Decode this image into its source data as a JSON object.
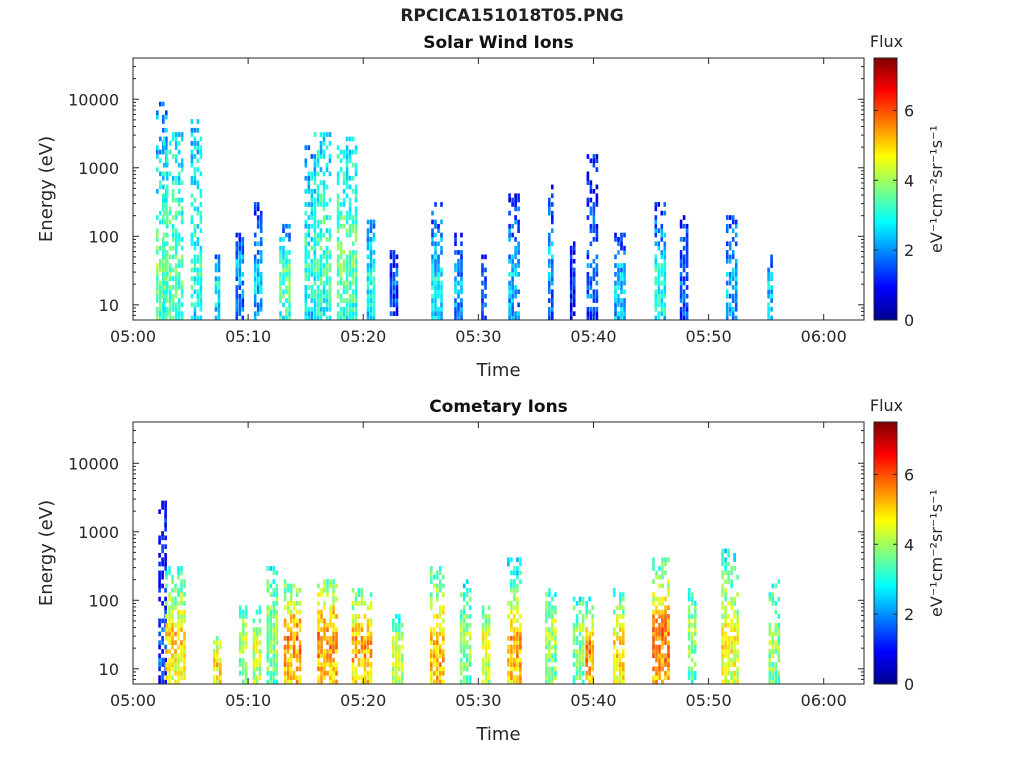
{
  "figure_title": "RPCICA151018T05.PNG",
  "chart_data": [
    {
      "type": "heatmap",
      "title": "Solar Wind Ions",
      "xlabel": "Time",
      "ylabel": "Energy (eV)",
      "x_ticks": [
        "05:00",
        "05:10",
        "05:20",
        "05:30",
        "05:40",
        "05:50",
        "06:00"
      ],
      "x_tick_minutes": [
        0,
        10,
        20,
        30,
        40,
        50,
        60
      ],
      "xlim_minutes": [
        0,
        63.5
      ],
      "y_scale": "log",
      "y_ticks": [
        "10",
        "100",
        "1000",
        "10000"
      ],
      "y_tick_values": [
        10,
        100,
        1000,
        10000
      ],
      "ylim": [
        6,
        40000
      ],
      "colorbar": {
        "title": "Flux",
        "label": "eV⁻¹cm⁻²sr⁻¹s⁻¹",
        "ticks": [
          "0",
          "2",
          "4",
          "6"
        ],
        "tick_values": [
          0,
          2,
          4,
          6
        ],
        "range": [
          0,
          7.5
        ]
      },
      "bursts": [
        {
          "t": 2.4,
          "w": 0.8,
          "peak_e": 30,
          "peak": 3.8,
          "hi_e": 8000,
          "hi": 1.8
        },
        {
          "t": 3.4,
          "w": 1.6,
          "peak_e": 25,
          "peak": 3.6,
          "hi_e": 3000,
          "hi": 2.6
        },
        {
          "t": 5.5,
          "w": 1.0,
          "peak_e": 30,
          "peak": 3.2,
          "hi_e": 5000,
          "hi": 2.4
        },
        {
          "t": 7.3,
          "w": 0.4,
          "peak_e": 20,
          "peak": 2.8,
          "hi_e": 50,
          "hi": 1.2
        },
        {
          "t": 9.2,
          "w": 0.6,
          "peak_e": 40,
          "peak": 2.2,
          "hi_e": 100,
          "hi": 1.2
        },
        {
          "t": 10.8,
          "w": 0.6,
          "peak_e": 25,
          "peak": 2.6,
          "hi_e": 300,
          "hi": 1.0
        },
        {
          "t": 13.2,
          "w": 1.0,
          "peak_e": 30,
          "peak": 3.6,
          "hi_e": 150,
          "hi": 1.5
        },
        {
          "t": 15.3,
          "w": 0.8,
          "peak_e": 30,
          "peak": 3.2,
          "hi_e": 2000,
          "hi": 2.0
        },
        {
          "t": 16.4,
          "w": 1.4,
          "peak_e": 35,
          "peak": 3.4,
          "hi_e": 3000,
          "hi": 2.6
        },
        {
          "t": 18.6,
          "w": 1.8,
          "peak_e": 30,
          "peak": 3.6,
          "hi_e": 2500,
          "hi": 2.8
        },
        {
          "t": 20.6,
          "w": 0.6,
          "peak_e": 20,
          "peak": 3.0,
          "hi_e": 200,
          "hi": 1.8
        },
        {
          "t": 22.6,
          "w": 0.6,
          "peak_e": 20,
          "peak": 1.6,
          "hi_e": 60,
          "hi": 1.0
        },
        {
          "t": 26.3,
          "w": 0.8,
          "peak_e": 20,
          "peak": 2.8,
          "hi_e": 300,
          "hi": 1.2
        },
        {
          "t": 28.2,
          "w": 0.6,
          "peak_e": 20,
          "peak": 2.2,
          "hi_e": 100,
          "hi": 1.0
        },
        {
          "t": 30.5,
          "w": 0.5,
          "peak_e": 20,
          "peak": 1.6,
          "hi_e": 50,
          "hi": 1.0
        },
        {
          "t": 33.0,
          "w": 0.8,
          "peak_e": 25,
          "peak": 2.4,
          "hi_e": 400,
          "hi": 1.0
        },
        {
          "t": 36.3,
          "w": 0.5,
          "peak_e": 50,
          "peak": 2.2,
          "hi_e": 500,
          "hi": 1.0
        },
        {
          "t": 38.2,
          "w": 0.5,
          "peak_e": 40,
          "peak": 1.4,
          "hi_e": 80,
          "hi": 0.8
        },
        {
          "t": 39.8,
          "w": 0.8,
          "peak_e": 20,
          "peak": 1.8,
          "hi_e": 1500,
          "hi": 1.0
        },
        {
          "t": 42.2,
          "w": 0.8,
          "peak_e": 20,
          "peak": 2.6,
          "hi_e": 100,
          "hi": 1.0
        },
        {
          "t": 45.7,
          "w": 0.8,
          "peak_e": 25,
          "peak": 3.2,
          "hi_e": 300,
          "hi": 1.0
        },
        {
          "t": 47.8,
          "w": 0.6,
          "peak_e": 25,
          "peak": 1.8,
          "hi_e": 200,
          "hi": 1.0
        },
        {
          "t": 52.0,
          "w": 1.0,
          "peak_e": 25,
          "peak": 2.4,
          "hi_e": 200,
          "hi": 1.4
        },
        {
          "t": 55.3,
          "w": 0.4,
          "peak_e": 20,
          "peak": 2.6,
          "hi_e": 60,
          "hi": 1.0
        }
      ]
    },
    {
      "type": "heatmap",
      "title": "Cometary Ions",
      "xlabel": "Time",
      "ylabel": "Energy (eV)",
      "x_ticks": [
        "05:00",
        "05:10",
        "05:20",
        "05:30",
        "05:40",
        "05:50",
        "06:00"
      ],
      "x_tick_minutes": [
        0,
        10,
        20,
        30,
        40,
        50,
        60
      ],
      "xlim_minutes": [
        0,
        63.5
      ],
      "y_scale": "log",
      "y_ticks": [
        "10",
        "100",
        "1000",
        "10000"
      ],
      "y_tick_values": [
        10,
        100,
        1000,
        10000
      ],
      "ylim": [
        6,
        40000
      ],
      "colorbar": {
        "title": "Flux",
        "label": "eV⁻¹cm⁻²sr⁻¹s⁻¹",
        "ticks": [
          "0",
          "2",
          "4",
          "6"
        ],
        "tick_values": [
          0,
          2,
          4,
          6
        ],
        "range": [
          0,
          7.5
        ]
      },
      "bursts": [
        {
          "t": 2.5,
          "w": 0.6,
          "peak_e": 12,
          "peak": 1.5,
          "hi_e": 2500,
          "hi": 1.0
        },
        {
          "t": 3.6,
          "w": 1.6,
          "peak_e": 30,
          "peak": 5.0,
          "hi_e": 300,
          "hi": 2.8
        },
        {
          "t": 7.3,
          "w": 0.7,
          "peak_e": 12,
          "peak": 5.0,
          "hi_e": 30,
          "hi": 3.8
        },
        {
          "t": 9.5,
          "w": 0.6,
          "peak_e": 40,
          "peak": 4.2,
          "hi_e": 80,
          "hi": 3.0
        },
        {
          "t": 10.7,
          "w": 0.6,
          "peak_e": 20,
          "peak": 4.4,
          "hi_e": 80,
          "hi": 3.0
        },
        {
          "t": 12.0,
          "w": 0.8,
          "peak_e": 40,
          "peak": 4.0,
          "hi_e": 300,
          "hi": 3.0
        },
        {
          "t": 13.8,
          "w": 1.4,
          "peak_e": 30,
          "peak": 5.6,
          "hi_e": 200,
          "hi": 3.2
        },
        {
          "t": 16.8,
          "w": 1.6,
          "peak_e": 30,
          "peak": 5.6,
          "hi_e": 200,
          "hi": 3.6
        },
        {
          "t": 19.8,
          "w": 1.6,
          "peak_e": 25,
          "peak": 5.4,
          "hi_e": 150,
          "hi": 3.2
        },
        {
          "t": 23.0,
          "w": 1.0,
          "peak_e": 20,
          "peak": 4.4,
          "hi_e": 60,
          "hi": 3.0
        },
        {
          "t": 26.4,
          "w": 1.2,
          "peak_e": 20,
          "peak": 5.4,
          "hi_e": 300,
          "hi": 3.2
        },
        {
          "t": 28.8,
          "w": 0.8,
          "peak_e": 30,
          "peak": 4.0,
          "hi_e": 200,
          "hi": 2.8
        },
        {
          "t": 30.6,
          "w": 0.6,
          "peak_e": 25,
          "peak": 4.6,
          "hi_e": 80,
          "hi": 3.2
        },
        {
          "t": 33.1,
          "w": 1.2,
          "peak_e": 25,
          "peak": 5.4,
          "hi_e": 400,
          "hi": 2.4
        },
        {
          "t": 36.2,
          "w": 0.8,
          "peak_e": 40,
          "peak": 4.2,
          "hi_e": 150,
          "hi": 3.0
        },
        {
          "t": 38.6,
          "w": 0.8,
          "peak_e": 30,
          "peak": 4.0,
          "hi_e": 100,
          "hi": 3.0
        },
        {
          "t": 39.6,
          "w": 0.6,
          "peak_e": 20,
          "peak": 5.6,
          "hi_e": 100,
          "hi": 3.0
        },
        {
          "t": 42.2,
          "w": 1.0,
          "peak_e": 20,
          "peak": 5.0,
          "hi_e": 150,
          "hi": 3.2
        },
        {
          "t": 45.8,
          "w": 1.4,
          "peak_e": 35,
          "peak": 5.8,
          "hi_e": 400,
          "hi": 3.0
        },
        {
          "t": 48.5,
          "w": 0.6,
          "peak_e": 40,
          "peak": 4.0,
          "hi_e": 150,
          "hi": 2.8
        },
        {
          "t": 51.8,
          "w": 1.4,
          "peak_e": 25,
          "peak": 4.8,
          "hi_e": 500,
          "hi": 2.8
        },
        {
          "t": 55.6,
          "w": 0.8,
          "peak_e": 20,
          "peak": 4.0,
          "hi_e": 200,
          "hi": 3.0
        }
      ]
    }
  ]
}
